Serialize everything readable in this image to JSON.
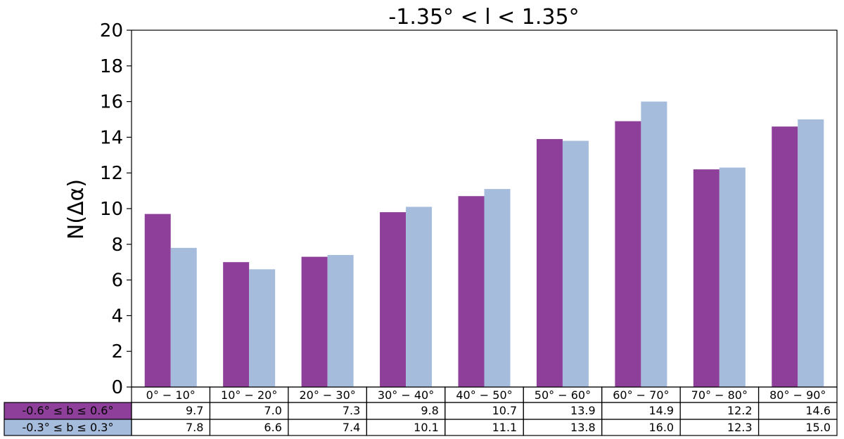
{
  "chart_data": {
    "type": "bar",
    "title": "-1.35° < l < 1.35°",
    "xlabel": "",
    "ylabel": "N(Δα)",
    "ylim": [
      0,
      20
    ],
    "yticks": [
      0,
      2,
      4,
      6,
      8,
      10,
      12,
      14,
      16,
      18,
      20
    ],
    "categories": [
      "0° − 10°",
      "10° − 20°",
      "20° − 30°",
      "30° − 40°",
      "40° − 50°",
      "50° − 60°",
      "60° − 70°",
      "70° − 80°",
      "80° − 90°"
    ],
    "series": [
      {
        "name": "-0.6° ≤ b ≤ 0.6°",
        "color": "#8e3f9a",
        "values": [
          9.7,
          7.0,
          7.3,
          9.8,
          10.7,
          13.9,
          14.9,
          12.2,
          14.6
        ],
        "labels": [
          "9.7",
          "7.0",
          "7.3",
          "9.8",
          "10.7",
          "13.9",
          "14.9",
          "12.2",
          "14.6"
        ]
      },
      {
        "name": "-0.3° ≤ b ≤ 0.3°",
        "color": "#a6bcdc",
        "values": [
          7.8,
          6.6,
          7.4,
          10.1,
          11.1,
          13.8,
          16.0,
          12.3,
          15.0
        ],
        "labels": [
          "7.8",
          "6.6",
          "7.4",
          "10.1",
          "11.1",
          "13.8",
          "16.0",
          "12.3",
          "15.0"
        ]
      }
    ],
    "grid": false,
    "legend": "table-below"
  }
}
